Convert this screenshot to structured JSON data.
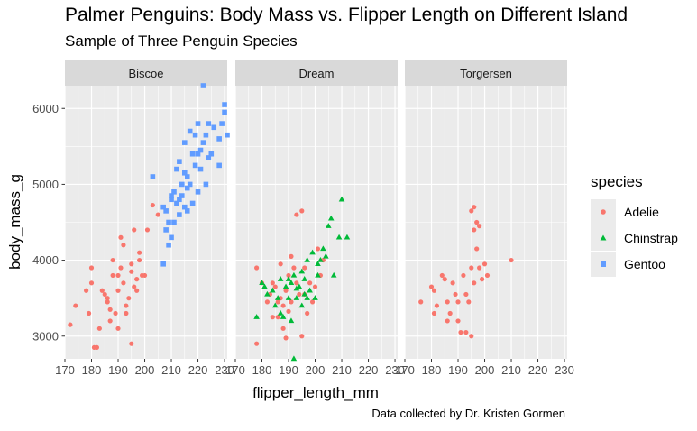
{
  "title": "Palmer Penguins: Body Mass vs. Flipper Length on Different Island",
  "subtitle": "Sample of Three Penguin Species",
  "caption": "Data collected by Dr. Kristen Gormen",
  "legend": {
    "title": "species",
    "items": [
      {
        "label": "Adelie",
        "color": "#f8766d",
        "shape": "circle"
      },
      {
        "label": "Chinstrap",
        "color": "#00ba38",
        "shape": "triangle"
      },
      {
        "label": "Gentoo",
        "color": "#619cff",
        "shape": "square"
      }
    ]
  },
  "chart_data": {
    "type": "scatter",
    "facets": [
      "Biscoe",
      "Dream",
      "Torgersen"
    ],
    "xlabel": "flipper_length_mm",
    "ylabel": "body_mass_g",
    "xlim": [
      170,
      231
    ],
    "ylim": [
      2700,
      6300
    ],
    "xticks": [
      170,
      180,
      190,
      200,
      210,
      220,
      230
    ],
    "yticks": [
      3000,
      4000,
      5000,
      6000
    ],
    "grid": true,
    "legend_position": "right",
    "series": [
      {
        "name": "Adelie",
        "color": "#f8766d",
        "shape": "circle",
        "panels": {
          "Biscoe": [
            [
              172,
              3150
            ],
            [
              174,
              3400
            ],
            [
              178,
              3600
            ],
            [
              179,
              3300
            ],
            [
              180,
              3700
            ],
            [
              180,
              3900
            ],
            [
              181,
              2850
            ],
            [
              182,
              2850
            ],
            [
              183,
              3100
            ],
            [
              184,
              3600
            ],
            [
              185,
              3550
            ],
            [
              186,
              3500
            ],
            [
              186,
              3450
            ],
            [
              187,
              3350
            ],
            [
              187,
              3200
            ],
            [
              188,
              4000
            ],
            [
              188,
              3800
            ],
            [
              189,
              3300
            ],
            [
              190,
              3800
            ],
            [
              190,
              3600
            ],
            [
              190,
              3100
            ],
            [
              191,
              4300
            ],
            [
              191,
              3900
            ],
            [
              192,
              3700
            ],
            [
              192,
              4200
            ],
            [
              193,
              3300
            ],
            [
              193,
              3400
            ],
            [
              194,
              3500
            ],
            [
              195,
              3850
            ],
            [
              195,
              3950
            ],
            [
              195,
              2900
            ],
            [
              196,
              4400
            ],
            [
              196,
              3650
            ],
            [
              197,
              3600
            ],
            [
              197,
              3750
            ],
            [
              198,
              4100
            ],
            [
              198,
              4000
            ],
            [
              199,
              3800
            ],
            [
              200,
              3800
            ],
            [
              201,
              4400
            ],
            [
              203,
              4725
            ],
            [
              205,
              4600
            ]
          ],
          "Dream": [
            [
              178,
              2900
            ],
            [
              178,
              3900
            ],
            [
              180,
              3700
            ],
            [
              182,
              3450
            ],
            [
              183,
              3550
            ],
            [
              184,
              3700
            ],
            [
              184,
              3250
            ],
            [
              185,
              3650
            ],
            [
              186,
              3450
            ],
            [
              186,
              3250
            ],
            [
              187,
              3500
            ],
            [
              187,
              3950
            ],
            [
              188,
              3100
            ],
            [
              188,
              3400
            ],
            [
              189,
              3600
            ],
            [
              189,
              2975
            ],
            [
              190,
              3800
            ],
            [
              190,
              3325
            ],
            [
              191,
              4050
            ],
            [
              191,
              3450
            ],
            [
              192,
              3900
            ],
            [
              193,
              4600
            ],
            [
              193,
              3700
            ],
            [
              194,
              3550
            ],
            [
              195,
              3000
            ],
            [
              195,
              4650
            ],
            [
              196,
              3900
            ],
            [
              196,
              3550
            ],
            [
              197,
              3300
            ],
            [
              198,
              3700
            ],
            [
              199,
              3450
            ],
            [
              200,
              3650
            ],
            [
              201,
              4150
            ],
            [
              202,
              3800
            ],
            [
              203,
              4000
            ]
          ],
          "Torgersen": [
            [
              176,
              3450
            ],
            [
              180,
              3650
            ],
            [
              181,
              3600
            ],
            [
              181,
              3300
            ],
            [
              182,
              3400
            ],
            [
              184,
              3800
            ],
            [
              185,
              3750
            ],
            [
              186,
              3200
            ],
            [
              186,
              3450
            ],
            [
              187,
              3300
            ],
            [
              188,
              3700
            ],
            [
              189,
              3550
            ],
            [
              190,
              3200
            ],
            [
              190,
              3450
            ],
            [
              191,
              3050
            ],
            [
              192,
              3800
            ],
            [
              193,
              3050
            ],
            [
              193,
              3550
            ],
            [
              194,
              3450
            ],
            [
              195,
              3000
            ],
            [
              195,
              3900
            ],
            [
              195,
              4650
            ],
            [
              196,
              4700
            ],
            [
              196,
              3700
            ],
            [
              196,
              4400
            ],
            [
              197,
              4500
            ],
            [
              197,
              4150
            ],
            [
              198,
              3900
            ],
            [
              198,
              4450
            ],
            [
              199,
              3750
            ],
            [
              200,
              3950
            ],
            [
              201,
              3800
            ],
            [
              210,
              4000
            ]
          ]
        }
      },
      {
        "name": "Chinstrap",
        "color": "#00ba38",
        "shape": "triangle",
        "panels": {
          "Biscoe": [],
          "Dream": [
            [
              178,
              3250
            ],
            [
              180,
              3700
            ],
            [
              181,
              3650
            ],
            [
              182,
              3550
            ],
            [
              184,
              3600
            ],
            [
              185,
              3400
            ],
            [
              186,
              3500
            ],
            [
              187,
              3750
            ],
            [
              187,
              3300
            ],
            [
              188,
              3250
            ],
            [
              189,
              3650
            ],
            [
              190,
              3750
            ],
            [
              190,
              3500
            ],
            [
              191,
              3700
            ],
            [
              191,
              3200
            ],
            [
              192,
              2700
            ],
            [
              192,
              3800
            ],
            [
              193,
              3625
            ],
            [
              193,
              3500
            ],
            [
              194,
              3650
            ],
            [
              195,
              3400
            ],
            [
              195,
              3850
            ],
            [
              196,
              3550
            ],
            [
              196,
              3750
            ],
            [
              197,
              3500
            ],
            [
              197,
              4000
            ],
            [
              198,
              3600
            ],
            [
              199,
              4100
            ],
            [
              200,
              3500
            ],
            [
              201,
              3800
            ],
            [
              201,
              3950
            ],
            [
              202,
              4000
            ],
            [
              203,
              4150
            ],
            [
              204,
              4050
            ],
            [
              205,
              4450
            ],
            [
              206,
              4550
            ],
            [
              207,
              3800
            ],
            [
              209,
              4300
            ],
            [
              210,
              4800
            ],
            [
              212,
              4300
            ]
          ],
          "Torgersen": []
        }
      },
      {
        "name": "Gentoo",
        "color": "#619cff",
        "shape": "square",
        "panels": {
          "Biscoe": [
            [
              203,
              5100
            ],
            [
              207,
              4700
            ],
            [
              207,
              3950
            ],
            [
              208,
              4400
            ],
            [
              208,
              4650
            ],
            [
              209,
              4500
            ],
            [
              209,
              4200
            ],
            [
              210,
              4800
            ],
            [
              210,
              4300
            ],
            [
              210,
              4850
            ],
            [
              211,
              4500
            ],
            [
              211,
              4900
            ],
            [
              212,
              4750
            ],
            [
              212,
              5200
            ],
            [
              213,
              4600
            ],
            [
              213,
              5300
            ],
            [
              213,
              4800
            ],
            [
              214,
              4850
            ],
            [
              214,
              5000
            ],
            [
              215,
              4700
            ],
            [
              215,
              5150
            ],
            [
              215,
              5550
            ],
            [
              216,
              4950
            ],
            [
              216,
              5100
            ],
            [
              216,
              4650
            ],
            [
              217,
              5000
            ],
            [
              217,
              5700
            ],
            [
              218,
              5400
            ],
            [
              218,
              4750
            ],
            [
              219,
              5250
            ],
            [
              219,
              5650
            ],
            [
              220,
              5400
            ],
            [
              220,
              4900
            ],
            [
              220,
              5800
            ],
            [
              221,
              5200
            ],
            [
              221,
              5450
            ],
            [
              222,
              5550
            ],
            [
              222,
              6300
            ],
            [
              223,
              5650
            ],
            [
              223,
              5000
            ],
            [
              224,
              5350
            ],
            [
              224,
              5800
            ],
            [
              225,
              5400
            ],
            [
              226,
              5750
            ],
            [
              228,
              5600
            ],
            [
              228,
              5250
            ],
            [
              229,
              5800
            ],
            [
              230,
              5950
            ],
            [
              230,
              6050
            ],
            [
              231,
              5650
            ]
          ],
          "Dream": [],
          "Torgersen": []
        }
      }
    ]
  }
}
